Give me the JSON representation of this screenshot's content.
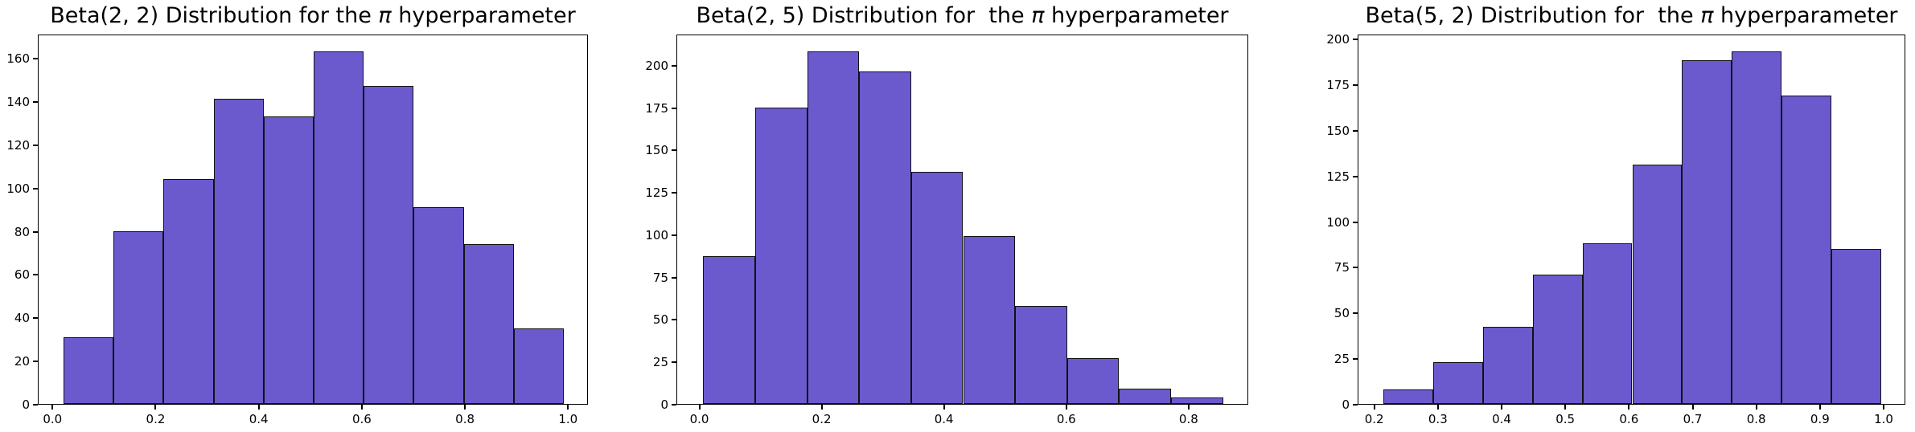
{
  "figure": {
    "background": "#ffffff",
    "text_color": "#000000"
  },
  "chart_data": [
    {
      "type": "bar",
      "subtype": "histogram",
      "title": "Beta(2, 2) Distribution for the π hyperparameter",
      "bar_color": "#6A5ACD",
      "edge_color": "#111111",
      "bin_edges": [
        0.02,
        0.117,
        0.214,
        0.311,
        0.408,
        0.505,
        0.602,
        0.699,
        0.796,
        0.893,
        0.99
      ],
      "counts": [
        31,
        80,
        104,
        141,
        133,
        163,
        147,
        91,
        74,
        35
      ],
      "xlabel": "",
      "ylabel": "",
      "xlim": [
        -0.0285,
        1.0385
      ],
      "ylim": [
        0,
        171.15
      ],
      "xtick_values": [
        0.0,
        0.2,
        0.4,
        0.6,
        0.8,
        1.0
      ],
      "xtick_labels": [
        "0.0",
        "0.2",
        "0.4",
        "0.6",
        "0.8",
        "1.0"
      ],
      "ytick_values": [
        0,
        20,
        40,
        60,
        80,
        100,
        120,
        140,
        160
      ],
      "ytick_labels": [
        "0",
        "20",
        "40",
        "60",
        "80",
        "100",
        "120",
        "140",
        "160"
      ],
      "grid": false,
      "legend": null
    },
    {
      "type": "bar",
      "subtype": "histogram",
      "title": "Beta(2, 5) Distribution for  the π hyperparameter",
      "bar_color": "#6A5ACD",
      "edge_color": "#111111",
      "bin_edges": [
        0.005,
        0.09,
        0.175,
        0.26,
        0.345,
        0.43,
        0.515,
        0.6,
        0.685,
        0.77,
        0.855
      ],
      "counts": [
        87,
        175,
        208,
        196,
        137,
        99,
        58,
        27,
        9,
        4
      ],
      "xlabel": "",
      "ylabel": "",
      "xlim": [
        -0.0375,
        0.8975
      ],
      "ylim": [
        0,
        218.4
      ],
      "xtick_values": [
        0.0,
        0.2,
        0.4,
        0.6,
        0.8
      ],
      "xtick_labels": [
        "0.0",
        "0.2",
        "0.4",
        "0.6",
        "0.8"
      ],
      "ytick_values": [
        0,
        25,
        50,
        75,
        100,
        125,
        150,
        175,
        200
      ],
      "ytick_labels": [
        "0",
        "25",
        "50",
        "75",
        "100",
        "125",
        "150",
        "175",
        "200"
      ],
      "grid": false,
      "legend": null
    },
    {
      "type": "bar",
      "subtype": "histogram",
      "title": "Beta(5, 2) Distribution for  the π hyperparameter",
      "bar_color": "#6A5ACD",
      "edge_color": "#111111",
      "bin_edges": [
        0.213,
        0.2912,
        0.3694,
        0.4476,
        0.5258,
        0.604,
        0.6822,
        0.7604,
        0.8386,
        0.9168,
        0.995
      ],
      "counts": [
        8,
        23,
        42,
        71,
        88,
        131,
        188,
        193,
        169,
        85
      ],
      "xlabel": "",
      "ylabel": "",
      "xlim": [
        0.1739,
        1.0341
      ],
      "ylim": [
        0,
        202.65
      ],
      "xtick_values": [
        0.2,
        0.3,
        0.4,
        0.5,
        0.6,
        0.7,
        0.8,
        0.9,
        1.0
      ],
      "xtick_labels": [
        "0.2",
        "0.3",
        "0.4",
        "0.5",
        "0.6",
        "0.7",
        "0.8",
        "0.9",
        "1.0"
      ],
      "ytick_values": [
        0,
        25,
        50,
        75,
        100,
        125,
        150,
        175,
        200
      ],
      "ytick_labels": [
        "0",
        "25",
        "50",
        "75",
        "100",
        "125",
        "150",
        "175",
        "200"
      ],
      "grid": false,
      "legend": null
    }
  ]
}
